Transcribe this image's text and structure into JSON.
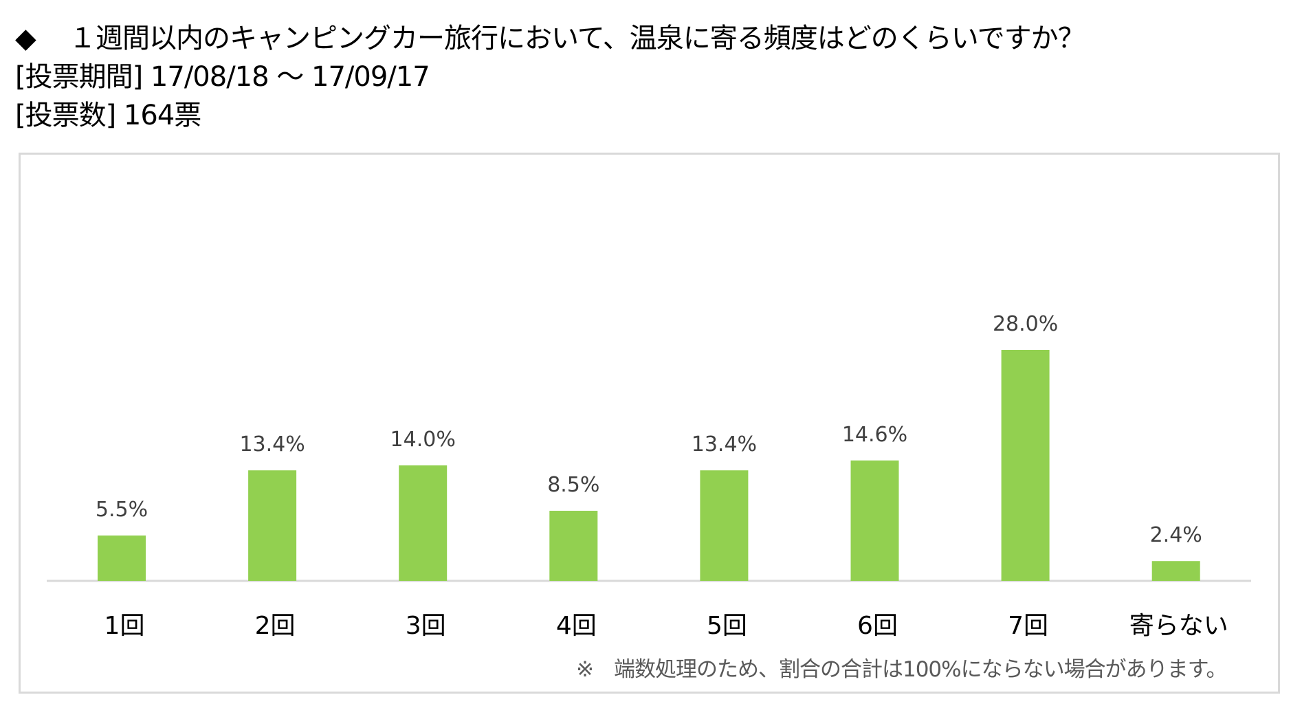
{
  "header": {
    "question_marker": "◆",
    "question": "１週間以内のキャンピングカー旅行において、温泉に寄る頻度はどのくらいですか？",
    "period": "[投票期間] 17/08/18 ～ 17/09/17",
    "votes": "[投票数] 164票"
  },
  "footnote": "※　端数処理のため、割合の合計は100%にならない場合があります。",
  "colors": {
    "bar": "#92d050",
    "axis": "#d9d9d9",
    "label": "#404040"
  },
  "chart_data": {
    "type": "bar",
    "title": "",
    "xlabel": "",
    "ylabel": "",
    "categories": [
      "1回",
      "2回",
      "3回",
      "4回",
      "5回",
      "6回",
      "7回",
      "寄らない"
    ],
    "values": [
      5.5,
      13.4,
      14.0,
      8.5,
      13.4,
      14.6,
      28.0,
      2.4
    ],
    "data_labels": [
      "5.5%",
      "13.4%",
      "14.0%",
      "8.5%",
      "13.4%",
      "14.6%",
      "28.0%",
      "2.4%"
    ],
    "ylim": [
      0,
      30
    ],
    "grid": false,
    "legend": "none"
  }
}
